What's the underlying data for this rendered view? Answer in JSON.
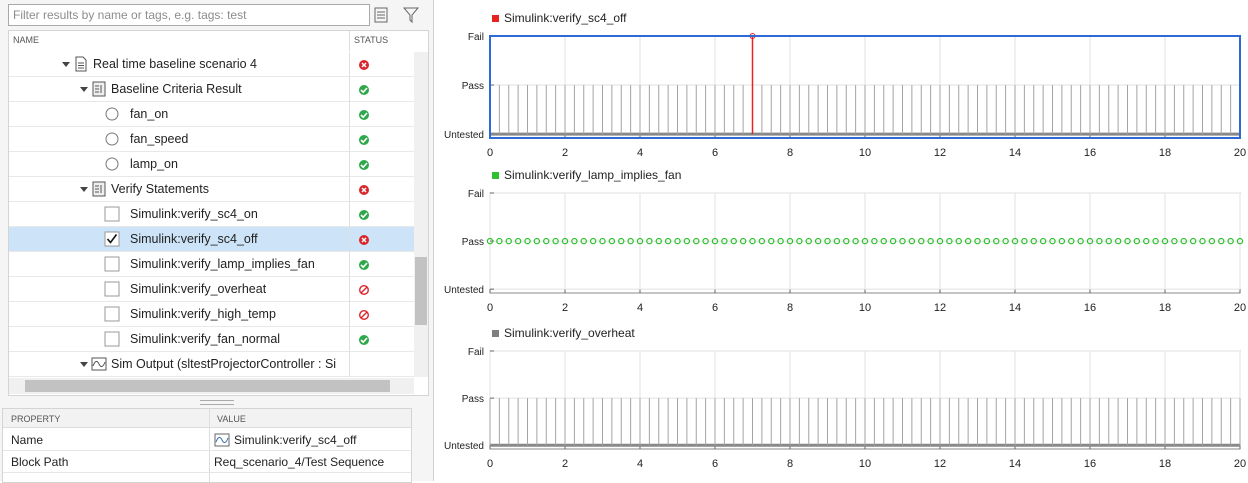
{
  "search": {
    "placeholder": "Filter results by name or tags, e.g. tags: test"
  },
  "tree": {
    "columns": [
      "NAME",
      "STATUS"
    ],
    "nodes": [
      {
        "label": "Real time baseline scenario 4",
        "kind": "result",
        "status": "fail",
        "children": [
          {
            "label": "Baseline Criteria Result",
            "kind": "criteria",
            "status": "pass",
            "children": [
              {
                "label": "fan_on",
                "kind": "signal",
                "status": "pass"
              },
              {
                "label": "fan_speed",
                "kind": "signal",
                "status": "pass"
              },
              {
                "label": "lamp_on",
                "kind": "signal",
                "status": "pass"
              }
            ]
          },
          {
            "label": "Verify Statements",
            "kind": "criteria",
            "status": "fail",
            "children": [
              {
                "label": "Simulink:verify_sc4_on",
                "kind": "check",
                "status": "pass"
              },
              {
                "label": "Simulink:verify_sc4_off",
                "kind": "check",
                "status": "fail",
                "checked": true,
                "selected": true
              },
              {
                "label": "Simulink:verify_lamp_implies_fan",
                "kind": "check",
                "status": "pass"
              },
              {
                "label": "Simulink:verify_overheat",
                "kind": "check",
                "status": "disabled"
              },
              {
                "label": "Simulink:verify_high_temp",
                "kind": "check",
                "status": "disabled"
              },
              {
                "label": "Simulink:verify_fan_normal",
                "kind": "check",
                "status": "pass"
              }
            ]
          },
          {
            "label": "Sim Output (sltestProjectorController : Si",
            "kind": "sim",
            "collapsed": false
          }
        ]
      }
    ]
  },
  "properties": {
    "columns": [
      "PROPERTY",
      "VALUE"
    ],
    "rows": [
      [
        "Name",
        "Simulink:verify_sc4_off"
      ],
      [
        "Block Path",
        "Req_scenario_4/Test Sequence"
      ]
    ]
  },
  "chart_data": [
    {
      "type": "stem",
      "selected": true,
      "stem_color": "#a3a3a3",
      "series": [
        {
          "name": "Simulink:verify_sc4_off",
          "color": "#e8231f",
          "values": [
            1,
            1,
            1,
            1,
            1,
            1,
            1,
            1,
            1,
            1,
            1,
            1,
            1,
            1,
            1,
            1,
            1,
            1,
            1,
            1,
            1,
            1,
            1,
            1,
            1,
            1,
            1,
            1,
            2,
            1,
            1,
            1,
            1,
            1,
            1,
            1,
            1,
            1,
            1,
            1,
            1,
            1,
            1,
            1,
            1,
            1,
            1,
            1,
            1,
            1,
            1,
            1,
            1,
            1,
            1,
            1,
            1,
            1,
            1,
            1,
            1,
            1,
            1,
            1,
            1,
            1,
            1,
            1,
            1,
            1,
            1,
            1,
            1,
            1,
            1,
            1,
            1,
            1,
            1,
            1,
            1
          ]
        }
      ],
      "x": [
        0,
        0.25,
        0.5,
        0.75,
        1,
        1.25,
        1.5,
        1.75,
        2,
        2.25,
        2.5,
        2.75,
        3,
        3.25,
        3.5,
        3.75,
        4,
        4.25,
        4.5,
        4.75,
        5,
        5.25,
        5.5,
        5.75,
        6,
        6.25,
        6.5,
        6.75,
        7,
        7.25,
        7.5,
        7.75,
        8,
        8.25,
        8.5,
        8.75,
        9,
        9.25,
        9.5,
        9.75,
        10,
        10.25,
        10.5,
        10.75,
        11,
        11.25,
        11.5,
        11.75,
        12,
        12.25,
        12.5,
        12.75,
        13,
        13.25,
        13.5,
        13.75,
        14,
        14.25,
        14.5,
        14.75,
        15,
        15.25,
        15.5,
        15.75,
        16,
        16.25,
        16.5,
        16.75,
        17,
        17.25,
        17.5,
        17.75,
        18,
        18.25,
        18.5,
        18.75,
        19,
        19.25,
        19.5,
        19.75,
        20
      ],
      "xlim": [
        0,
        20
      ],
      "xticks": [
        0,
        2,
        4,
        6,
        8,
        10,
        12,
        14,
        16,
        18,
        20
      ],
      "ylim": [
        -0.08,
        2
      ],
      "yticks": [
        {
          "value": 0,
          "label": "Untested"
        },
        {
          "value": 1,
          "label": "Pass"
        },
        {
          "value": 2,
          "label": "Fail"
        }
      ],
      "grid": true
    },
    {
      "type": "scatter",
      "selected": false,
      "series": [
        {
          "name": "Simulink:verify_lamp_implies_fan",
          "color": "#2ec02e",
          "values": [
            1,
            1,
            1,
            1,
            1,
            1,
            1,
            1,
            1,
            1,
            1,
            1,
            1,
            1,
            1,
            1,
            1,
            1,
            1,
            1,
            1,
            1,
            1,
            1,
            1,
            1,
            1,
            1,
            1,
            1,
            1,
            1,
            1,
            1,
            1,
            1,
            1,
            1,
            1,
            1,
            1,
            1,
            1,
            1,
            1,
            1,
            1,
            1,
            1,
            1,
            1,
            1,
            1,
            1,
            1,
            1,
            1,
            1,
            1,
            1,
            1,
            1,
            1,
            1,
            1,
            1,
            1,
            1,
            1,
            1,
            1,
            1,
            1,
            1,
            1,
            1,
            1,
            1,
            1,
            1,
            1
          ]
        }
      ],
      "x": [
        0,
        0.25,
        0.5,
        0.75,
        1,
        1.25,
        1.5,
        1.75,
        2,
        2.25,
        2.5,
        2.75,
        3,
        3.25,
        3.5,
        3.75,
        4,
        4.25,
        4.5,
        4.75,
        5,
        5.25,
        5.5,
        5.75,
        6,
        6.25,
        6.5,
        6.75,
        7,
        7.25,
        7.5,
        7.75,
        8,
        8.25,
        8.5,
        8.75,
        9,
        9.25,
        9.5,
        9.75,
        10,
        10.25,
        10.5,
        10.75,
        11,
        11.25,
        11.5,
        11.75,
        12,
        12.25,
        12.5,
        12.75,
        13,
        13.25,
        13.5,
        13.75,
        14,
        14.25,
        14.5,
        14.75,
        15,
        15.25,
        15.5,
        15.75,
        16,
        16.25,
        16.5,
        16.75,
        17,
        17.25,
        17.5,
        17.75,
        18,
        18.25,
        18.5,
        18.75,
        19,
        19.25,
        19.5,
        19.75,
        20
      ],
      "xlim": [
        0,
        20
      ],
      "xticks": [
        0,
        2,
        4,
        6,
        8,
        10,
        12,
        14,
        16,
        18,
        20
      ],
      "ylim": [
        -0.08,
        2
      ],
      "yticks": [
        {
          "value": 0,
          "label": "Untested"
        },
        {
          "value": 1,
          "label": "Pass"
        },
        {
          "value": 2,
          "label": "Fail"
        }
      ],
      "grid": true
    },
    {
      "type": "stem",
      "selected": false,
      "stem_color": "#a3a3a3",
      "series": [
        {
          "name": "Simulink:verify_overheat",
          "color": "#7f7f7f",
          "values": [
            1,
            1,
            1,
            1,
            1,
            1,
            1,
            1,
            1,
            1,
            1,
            1,
            1,
            1,
            1,
            1,
            1,
            1,
            1,
            1,
            1,
            1,
            1,
            1,
            1,
            1,
            1,
            1,
            1,
            1,
            1,
            1,
            1,
            1,
            1,
            1,
            1,
            1,
            1,
            1,
            1,
            1,
            1,
            1,
            1,
            1,
            1,
            1,
            1,
            1,
            1,
            1,
            1,
            1,
            1,
            1,
            1,
            1,
            1,
            1,
            1,
            1,
            1,
            1,
            1,
            1,
            1,
            1,
            1,
            1,
            1,
            1,
            1,
            1,
            1,
            1,
            1,
            1,
            1,
            1,
            1
          ]
        }
      ],
      "x": [
        0,
        0.25,
        0.5,
        0.75,
        1,
        1.25,
        1.5,
        1.75,
        2,
        2.25,
        2.5,
        2.75,
        3,
        3.25,
        3.5,
        3.75,
        4,
        4.25,
        4.5,
        4.75,
        5,
        5.25,
        5.5,
        5.75,
        6,
        6.25,
        6.5,
        6.75,
        7,
        7.25,
        7.5,
        7.75,
        8,
        8.25,
        8.5,
        8.75,
        9,
        9.25,
        9.5,
        9.75,
        10,
        10.25,
        10.5,
        10.75,
        11,
        11.25,
        11.5,
        11.75,
        12,
        12.25,
        12.5,
        12.75,
        13,
        13.25,
        13.5,
        13.75,
        14,
        14.25,
        14.5,
        14.75,
        15,
        15.25,
        15.5,
        15.75,
        16,
        16.25,
        16.5,
        16.75,
        17,
        17.25,
        17.5,
        17.75,
        18,
        18.25,
        18.5,
        18.75,
        19,
        19.25,
        19.5,
        19.75,
        20
      ],
      "xlim": [
        0,
        20
      ],
      "xticks": [
        0,
        2,
        4,
        6,
        8,
        10,
        12,
        14,
        16,
        18,
        20
      ],
      "ylim": [
        -0.08,
        2
      ],
      "yticks": [
        {
          "value": 0,
          "label": "Untested"
        },
        {
          "value": 1,
          "label": "Pass"
        },
        {
          "value": 2,
          "label": "Fail"
        }
      ],
      "grid": true
    }
  ]
}
